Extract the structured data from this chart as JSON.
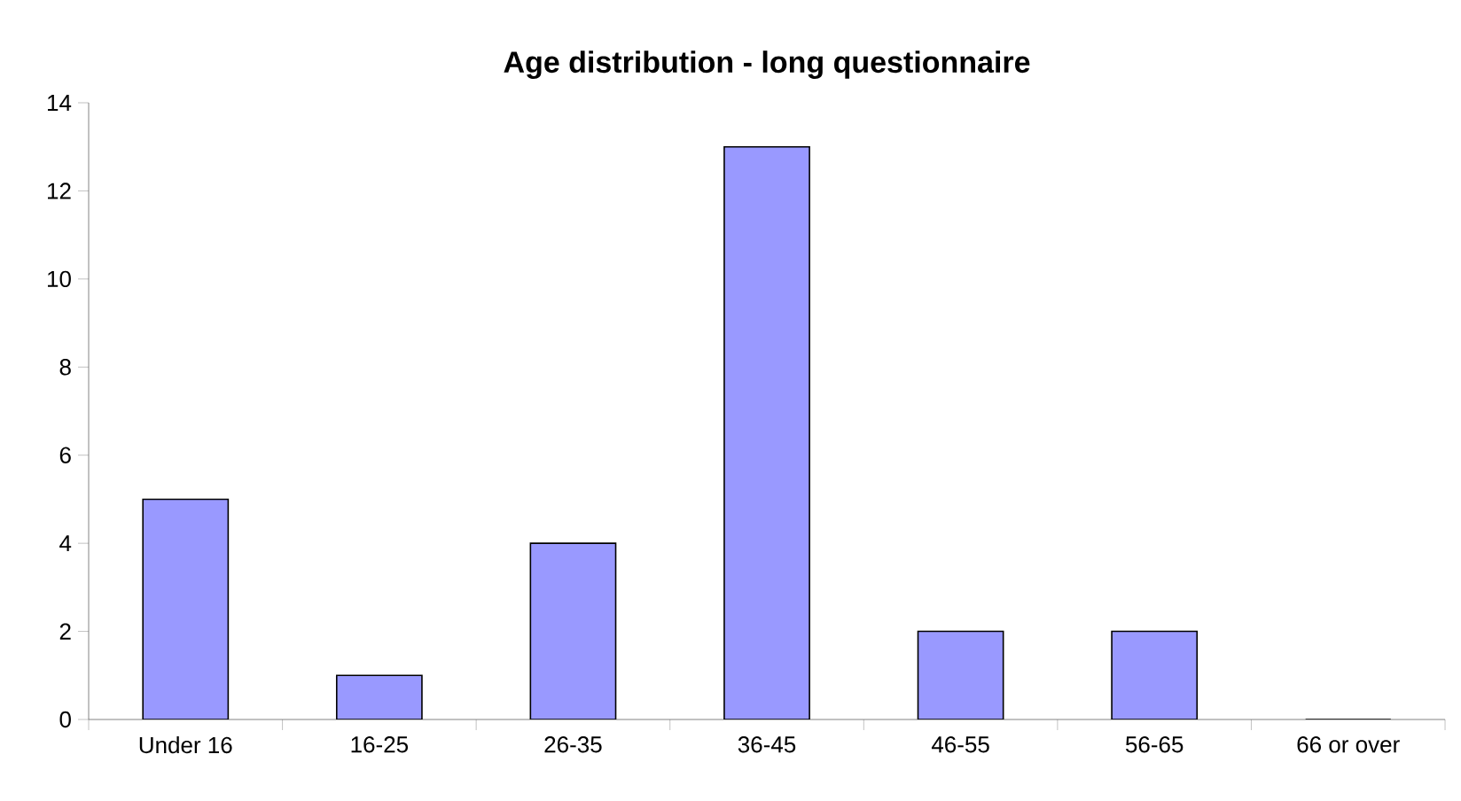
{
  "chart_data": {
    "type": "bar",
    "title": "Age distribution - long questionnaire",
    "categories": [
      "Under 16",
      "16-25",
      "26-35",
      "36-45",
      "46-55",
      "56-65",
      "66 or over"
    ],
    "values": [
      5,
      1,
      4,
      13,
      2,
      2,
      0
    ],
    "color": "#9999ff",
    "ylim": [
      0,
      14
    ],
    "yticks": [
      0,
      2,
      4,
      6,
      8,
      10,
      12,
      14
    ]
  }
}
